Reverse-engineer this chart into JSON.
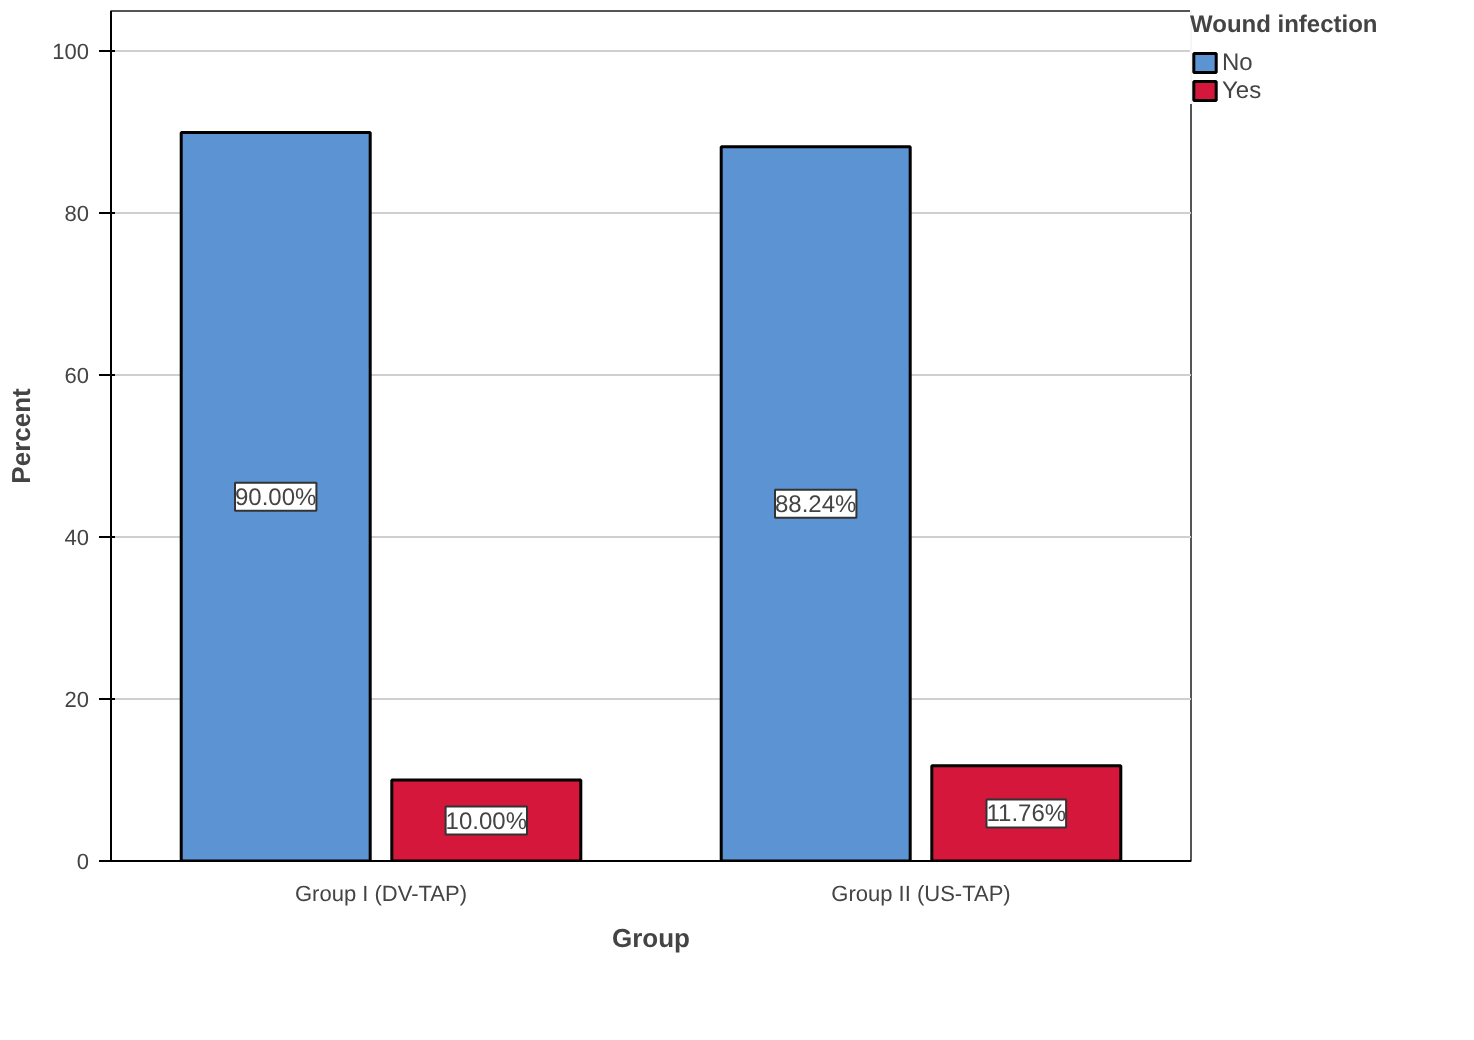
{
  "chart_data": {
    "type": "bar",
    "xlabel": "Group",
    "ylabel": "Percent",
    "legend_title": "Wound infection",
    "categories": [
      "Group I (DV-TAP)",
      "Group II (US-TAP)"
    ],
    "series": [
      {
        "name": "No",
        "color": "#5b93d3",
        "values": [
          90.0,
          88.24
        ],
        "value_labels": [
          "90.00%",
          "88.24%"
        ]
      },
      {
        "name": "Yes",
        "color": "#d4173a",
        "values": [
          10.0,
          11.76
        ],
        "value_labels": [
          "10.00%",
          "11.76%"
        ]
      }
    ],
    "ylim": [
      0,
      105
    ],
    "yticks": [
      0,
      20,
      40,
      60,
      80,
      100
    ],
    "grid": "y",
    "legend": "top right"
  }
}
